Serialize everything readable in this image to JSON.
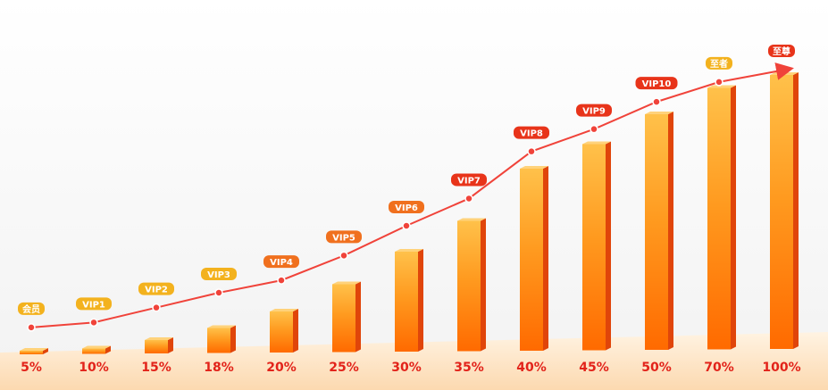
{
  "chart_data": {
    "type": "bar",
    "categories": [
      "5%",
      "10%",
      "15%",
      "18%",
      "20%",
      "25%",
      "30%",
      "35%",
      "40%",
      "45%",
      "50%",
      "70%",
      "100%"
    ],
    "values": [
      5,
      10,
      15,
      18,
      20,
      25,
      30,
      35,
      40,
      45,
      50,
      70,
      100
    ],
    "level_labels": [
      "会员",
      "VIP1",
      "VIP2",
      "VIP3",
      "VIP4",
      "VIP5",
      "VIP6",
      "VIP7",
      "VIP8",
      "VIP9",
      "VIP10",
      "至者",
      "至尊"
    ],
    "level_curve": [
      4,
      6,
      12,
      18,
      23,
      33,
      45,
      56,
      75,
      84,
      95,
      103,
      108
    ],
    "bar_heights": [
      4,
      6,
      15,
      28,
      46,
      76,
      112,
      146,
      204,
      231,
      264,
      293,
      307
    ],
    "title": "",
    "xlabel": "",
    "ylabel": "",
    "grid": false,
    "legend": "none",
    "colors": {
      "bar_top": "#ffc14a",
      "bar_mid": "#ff9a1f",
      "bar_bottom": "#ff6a00",
      "bar_side": "#e0450a",
      "line": "#f0433a",
      "label": "#e2231a",
      "badge_gold": "#f3b21e",
      "badge_orange": "#f0701e",
      "badge_red": "#e8341a",
      "floor": "#fde9cf"
    }
  }
}
